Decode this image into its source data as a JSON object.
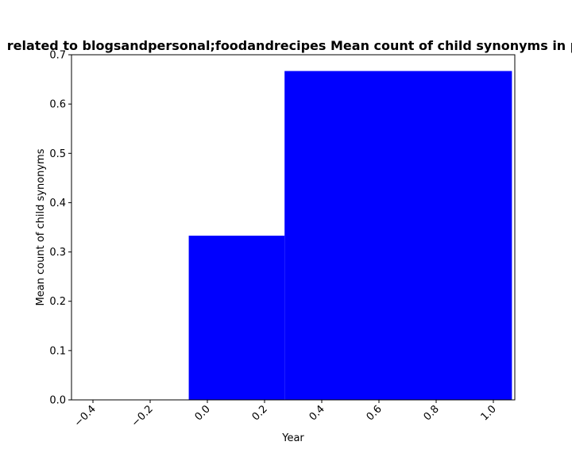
{
  "chart_data": {
    "type": "bar",
    "title": "related to blogsandpersonal;foodandrecipes Mean count of child synonyms in p",
    "xlabel": "Year",
    "ylabel": "Mean count of child synonyms",
    "xlim": [
      -0.475,
      1.075
    ],
    "ylim": [
      0,
      0.7
    ],
    "xticks": [
      -0.4,
      -0.2,
      0.0,
      0.2,
      0.4,
      0.6,
      0.8,
      1.0
    ],
    "xtick_labels": [
      "−0.4",
      "−0.2",
      "0.0",
      "0.2",
      "0.4",
      "0.6",
      "0.8",
      "1.0"
    ],
    "yticks": [
      0.0,
      0.1,
      0.2,
      0.3,
      0.4,
      0.5,
      0.6,
      0.7
    ],
    "ytick_labels": [
      "0.0",
      "0.1",
      "0.2",
      "0.3",
      "0.4",
      "0.5",
      "0.6",
      "0.7"
    ],
    "bars": [
      {
        "x0": -0.065,
        "x1": 0.27,
        "value": 0.333
      },
      {
        "x0": 0.27,
        "x1": 1.065,
        "value": 0.667
      }
    ],
    "bar_color": "#0000ff",
    "grid": false
  }
}
